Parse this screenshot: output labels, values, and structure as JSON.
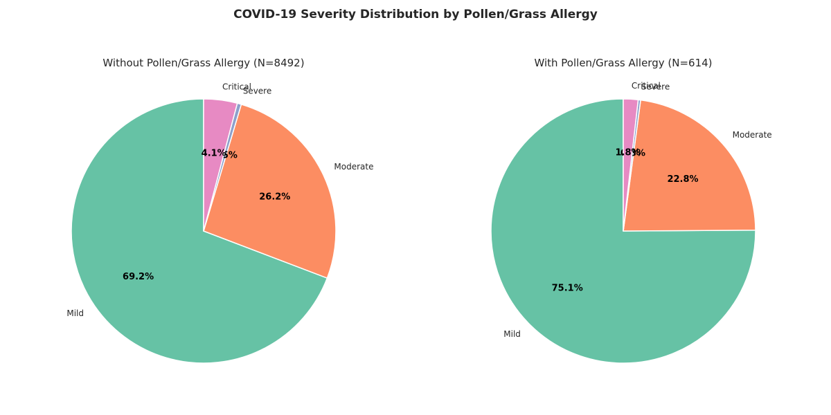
{
  "title": "COVID-19 Severity Distribution by Pollen/Grass Allergy",
  "colors": {
    "Mild": "#66c2a5",
    "Moderate": "#fc8d62",
    "Severe": "#8da0cb",
    "Critical": "#e78ac3"
  },
  "chart_data": [
    {
      "type": "pie",
      "title": "Without Pollen/Grass Allergy (N=8492)",
      "categories": [
        "Mild",
        "Moderate",
        "Severe",
        "Critical"
      ],
      "values": [
        69.2,
        26.2,
        0.5,
        4.1
      ],
      "labels": [
        "69.2%",
        "26.2%",
        "0.5%",
        "4.1%"
      ],
      "start_angle": "top",
      "direction": "counterclockwise"
    },
    {
      "type": "pie",
      "title": "With Pollen/Grass Allergy (N=614)",
      "categories": [
        "Mild",
        "Moderate",
        "Severe",
        "Critical"
      ],
      "values": [
        75.1,
        22.8,
        0.3,
        1.8
      ],
      "labels": [
        "75.1%",
        "22.8%",
        "0.3%",
        "1.8%"
      ],
      "start_angle": "top",
      "direction": "counterclockwise"
    }
  ]
}
